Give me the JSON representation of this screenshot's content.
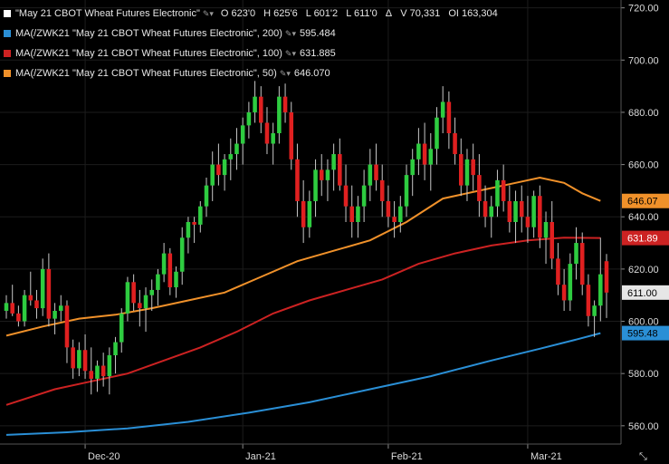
{
  "legend": {
    "main": {
      "title": "\"May 21 CBOT Wheat Futures Electronic\"",
      "open": "O 623'0",
      "high": "H 625'6",
      "low": "L 601'2",
      "last": "L 611'0",
      "delta": "Δ",
      "volume": "V 70,331",
      "oi": "OI 163,304",
      "color": "#ffffff"
    },
    "ma200": {
      "label": "MA(/ZWK21 \"May 21 CBOT Wheat Futures Electronic\", 200)",
      "value": "595.484",
      "color": "#2a8fd6"
    },
    "ma100": {
      "label": "MA(/ZWK21 \"May 21 CBOT Wheat Futures Electronic\", 100)",
      "value": "631.885",
      "color": "#cc2222"
    },
    "ma50": {
      "label": "MA(/ZWK21 \"May 21 CBOT Wheat Futures Electronic\", 50)",
      "value": "646.070",
      "color": "#f0912a"
    }
  },
  "price_tags": [
    {
      "text": "646.07",
      "value": 646.07,
      "bg": "#f0912a",
      "fg": "#000000"
    },
    {
      "text": "631.89",
      "value": 631.89,
      "bg": "#cc2222",
      "fg": "#ffffff"
    },
    {
      "text": "611.00",
      "value": 611.0,
      "bg": "#e6e6e6",
      "fg": "#000000"
    },
    {
      "text": "595.48",
      "value": 595.48,
      "bg": "#2a8fd6",
      "fg": "#000000"
    }
  ],
  "chart_data": {
    "type": "candlestick",
    "ylim": [
      553,
      723
    ],
    "y_ticks": [
      "560.00",
      "580.00",
      "600.00",
      "620.00",
      "640.00",
      "660.00",
      "680.00",
      "700.00",
      "720.00"
    ],
    "x_ticks": [
      {
        "label": "Dec-20",
        "index": 13
      },
      {
        "label": "Jan-21",
        "index": 39
      },
      {
        "label": "Feb-21",
        "index": 63
      },
      {
        "label": "Mar-21",
        "index": 86
      }
    ],
    "up_color": "#2ecc40",
    "down_color": "#e02020",
    "candles": [
      [
        604,
        610,
        601,
        607
      ],
      [
        607,
        614,
        602,
        603
      ],
      [
        603,
        606,
        598,
        600
      ],
      [
        600,
        612,
        598,
        610
      ],
      [
        610,
        619,
        606,
        608
      ],
      [
        608,
        612,
        601,
        605
      ],
      [
        605,
        624,
        602,
        620
      ],
      [
        620,
        626,
        598,
        601
      ],
      [
        601,
        607,
        595,
        604
      ],
      [
        604,
        610,
        600,
        606
      ],
      [
        606,
        608,
        584,
        590
      ],
      [
        590,
        593,
        578,
        582
      ],
      [
        582,
        592,
        579,
        589
      ],
      [
        589,
        595,
        578,
        581
      ],
      [
        581,
        590,
        572,
        578
      ],
      [
        578,
        585,
        573,
        583
      ],
      [
        583,
        588,
        575,
        579
      ],
      [
        579,
        590,
        572,
        587
      ],
      [
        587,
        594,
        580,
        592
      ],
      [
        592,
        605,
        588,
        603
      ],
      [
        603,
        617,
        600,
        615
      ],
      [
        615,
        618,
        604,
        607
      ],
      [
        607,
        612,
        598,
        605
      ],
      [
        605,
        613,
        596,
        610
      ],
      [
        610,
        616,
        604,
        612
      ],
      [
        612,
        620,
        606,
        618
      ],
      [
        618,
        630,
        615,
        626
      ],
      [
        626,
        628,
        610,
        613
      ],
      [
        613,
        621,
        609,
        619
      ],
      [
        619,
        636,
        614,
        632
      ],
      [
        632,
        640,
        626,
        638
      ],
      [
        638,
        640,
        630,
        637
      ],
      [
        637,
        646,
        634,
        644
      ],
      [
        644,
        655,
        640,
        652
      ],
      [
        652,
        665,
        646,
        660
      ],
      [
        660,
        668,
        652,
        656
      ],
      [
        656,
        664,
        650,
        662
      ],
      [
        662,
        670,
        654,
        664
      ],
      [
        664,
        674,
        658,
        668
      ],
      [
        668,
        678,
        660,
        675
      ],
      [
        675,
        684,
        670,
        680
      ],
      [
        680,
        692,
        676,
        686
      ],
      [
        686,
        690,
        672,
        676
      ],
      [
        676,
        682,
        664,
        668
      ],
      [
        668,
        676,
        660,
        672
      ],
      [
        672,
        690,
        668,
        686
      ],
      [
        686,
        691,
        676,
        680
      ],
      [
        680,
        684,
        658,
        662
      ],
      [
        662,
        668,
        640,
        646
      ],
      [
        646,
        654,
        630,
        636
      ],
      [
        636,
        650,
        632,
        646
      ],
      [
        646,
        662,
        640,
        658
      ],
      [
        658,
        664,
        648,
        654
      ],
      [
        654,
        662,
        646,
        658
      ],
      [
        658,
        668,
        650,
        664
      ],
      [
        664,
        670,
        650,
        652
      ],
      [
        652,
        660,
        638,
        644
      ],
      [
        644,
        652,
        632,
        638
      ],
      [
        638,
        648,
        632,
        644
      ],
      [
        644,
        658,
        638,
        652
      ],
      [
        652,
        666,
        646,
        660
      ],
      [
        660,
        668,
        650,
        654
      ],
      [
        654,
        660,
        640,
        646
      ],
      [
        646,
        652,
        636,
        640
      ],
      [
        640,
        646,
        632,
        638
      ],
      [
        638,
        648,
        634,
        644
      ],
      [
        644,
        660,
        640,
        656
      ],
      [
        656,
        666,
        648,
        662
      ],
      [
        662,
        674,
        656,
        668
      ],
      [
        668,
        676,
        654,
        660
      ],
      [
        660,
        672,
        650,
        666
      ],
      [
        666,
        682,
        660,
        678
      ],
      [
        678,
        690,
        672,
        684
      ],
      [
        684,
        688,
        666,
        672
      ],
      [
        672,
        678,
        660,
        664
      ],
      [
        664,
        670,
        648,
        652
      ],
      [
        652,
        666,
        646,
        662
      ],
      [
        662,
        668,
        650,
        656
      ],
      [
        656,
        664,
        640,
        646
      ],
      [
        646,
        652,
        636,
        640
      ],
      [
        640,
        648,
        632,
        644
      ],
      [
        644,
        658,
        640,
        654
      ],
      [
        654,
        660,
        642,
        646
      ],
      [
        646,
        652,
        634,
        638
      ],
      [
        638,
        650,
        630,
        646
      ],
      [
        646,
        652,
        634,
        640
      ],
      [
        640,
        648,
        630,
        636
      ],
      [
        636,
        650,
        632,
        648
      ],
      [
        648,
        652,
        628,
        632
      ],
      [
        632,
        642,
        622,
        638
      ],
      [
        638,
        646,
        620,
        624
      ],
      [
        624,
        630,
        610,
        614
      ],
      [
        614,
        620,
        604,
        608
      ],
      [
        608,
        626,
        604,
        622
      ],
      [
        622,
        636,
        616,
        630
      ],
      [
        630,
        634,
        610,
        614
      ],
      [
        614,
        618,
        598,
        602
      ],
      [
        602,
        608,
        594,
        606
      ],
      [
        606,
        632,
        600,
        618
      ],
      [
        623,
        625.75,
        601.25,
        611
      ]
    ],
    "ma50": [
      [
        0,
        594.5
      ],
      [
        6,
        598
      ],
      [
        12,
        601
      ],
      [
        18,
        602.5
      ],
      [
        24,
        605
      ],
      [
        30,
        608
      ],
      [
        36,
        611
      ],
      [
        42,
        617
      ],
      [
        48,
        623
      ],
      [
        54,
        627
      ],
      [
        60,
        631
      ],
      [
        66,
        638
      ],
      [
        72,
        647
      ],
      [
        78,
        650
      ],
      [
        84,
        653
      ],
      [
        88,
        655
      ],
      [
        92,
        653
      ],
      [
        95,
        649
      ],
      [
        98,
        646.07
      ]
    ],
    "ma100": [
      [
        0,
        568
      ],
      [
        8,
        574
      ],
      [
        14,
        577
      ],
      [
        20,
        580
      ],
      [
        26,
        585
      ],
      [
        32,
        590
      ],
      [
        38,
        596
      ],
      [
        44,
        603
      ],
      [
        50,
        608
      ],
      [
        56,
        612
      ],
      [
        62,
        616
      ],
      [
        68,
        622
      ],
      [
        74,
        626
      ],
      [
        80,
        629
      ],
      [
        86,
        631
      ],
      [
        92,
        632
      ],
      [
        98,
        631.89
      ]
    ],
    "ma200": [
      [
        0,
        556.5
      ],
      [
        10,
        557.5
      ],
      [
        20,
        559
      ],
      [
        30,
        561.5
      ],
      [
        40,
        565
      ],
      [
        50,
        569
      ],
      [
        60,
        574
      ],
      [
        70,
        579
      ],
      [
        80,
        585
      ],
      [
        88,
        589.5
      ],
      [
        94,
        593
      ],
      [
        98,
        595.48
      ]
    ]
  }
}
